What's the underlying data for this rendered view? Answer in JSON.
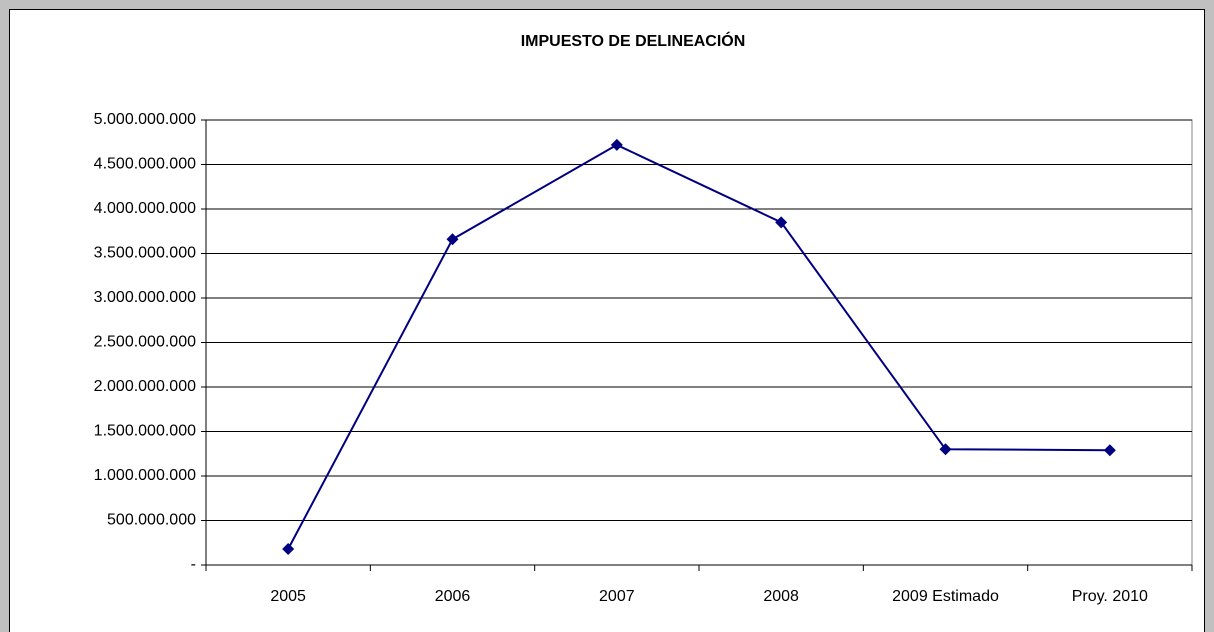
{
  "chart_data": {
    "type": "line",
    "title": "IMPUESTO DE DELINEACIÓN",
    "categories": [
      "2005",
      "2006",
      "2007",
      "2008",
      "2009 Estimado",
      "Proy.  2010"
    ],
    "series": [
      {
        "name": "Impuesto de delineación",
        "color": "#000080",
        "values": [
          180000000,
          3660000000,
          4720000000,
          3850000000,
          1300000000,
          1290000000
        ]
      }
    ],
    "ylim": [
      0,
      5000000000
    ],
    "yticks": [
      {
        "value": 0,
        "label": "-"
      },
      {
        "value": 500000000,
        "label": "500.000.000"
      },
      {
        "value": 1000000000,
        "label": "1.000.000.000"
      },
      {
        "value": 1500000000,
        "label": "1.500.000.000"
      },
      {
        "value": 2000000000,
        "label": "2.000.000.000"
      },
      {
        "value": 2500000000,
        "label": "2.500.000.000"
      },
      {
        "value": 3000000000,
        "label": "3.000.000.000"
      },
      {
        "value": 3500000000,
        "label": "3.500.000.000"
      },
      {
        "value": 4000000000,
        "label": "4.000.000.000"
      },
      {
        "value": 4500000000,
        "label": "4.500.000.000"
      },
      {
        "value": 5000000000,
        "label": "5.000.000.000"
      }
    ],
    "grid": true
  }
}
